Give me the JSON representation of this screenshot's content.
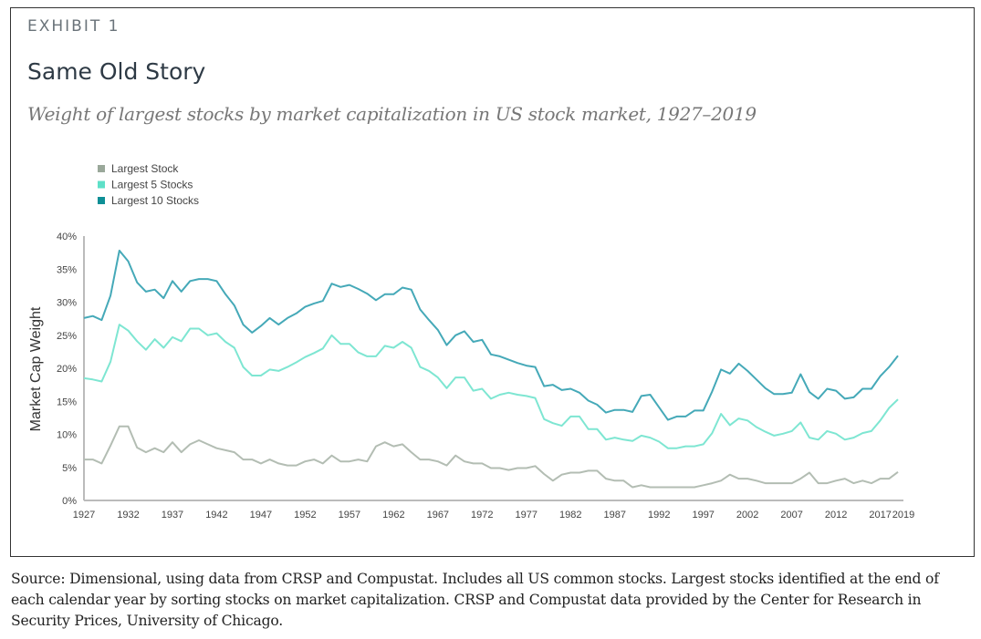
{
  "header": {
    "exhibit": "EXHIBIT 1",
    "title": "Same Old Story",
    "subtitle": "Weight of largest stocks by market capitalization in US stock market, 1927–2019"
  },
  "footer": {
    "source": "Source: Dimensional, using data from CRSP and Compustat. Includes all US common stocks. Largest stocks identified at the end of each calendar year by sorting stocks on market capitalization. CRSP and Compustat data provided by the Center for Research in Security Prices, University of Chicago."
  },
  "chart_data": {
    "type": "line",
    "title": "Same Old Story",
    "xlabel": "",
    "ylabel": "Market Cap Weight",
    "x_start": 1927,
    "x_end": 2019,
    "xlim": [
      1927,
      2019
    ],
    "ylim": [
      0,
      40
    ],
    "x_ticks": [
      "1927",
      "1932",
      "1937",
      "1942",
      "1947",
      "1952",
      "1957",
      "1962",
      "1967",
      "1972",
      "1977",
      "1982",
      "1987",
      "1992",
      "1997",
      "2002",
      "2007",
      "2012",
      "2017",
      "2019"
    ],
    "y_ticks": [
      "0%",
      "5%",
      "10%",
      "15%",
      "20%",
      "25%",
      "30%",
      "35%",
      "40%"
    ],
    "grid": false,
    "legend_position": "top-left",
    "series": [
      {
        "name": "Largest Stock",
        "color": "#b3bdb3",
        "legend_color": "#9aa89a",
        "values": [
          6.2,
          6.2,
          5.6,
          8.3,
          11.2,
          11.2,
          8.0,
          7.3,
          7.9,
          7.3,
          8.8,
          7.3,
          8.5,
          9.1,
          8.5,
          7.9,
          7.6,
          7.3,
          6.2,
          6.2,
          5.6,
          6.2,
          5.6,
          5.3,
          5.3,
          5.9,
          6.2,
          5.6,
          6.8,
          5.9,
          5.9,
          6.2,
          5.9,
          8.2,
          8.8,
          8.2,
          8.5,
          7.3,
          6.2,
          6.2,
          5.9,
          5.3,
          6.8,
          5.9,
          5.6,
          5.6,
          4.9,
          4.9,
          4.6,
          4.9,
          4.9,
          5.2,
          4.0,
          3.0,
          3.9,
          4.2,
          4.2,
          4.5,
          4.5,
          3.3,
          3.0,
          3.0,
          2.0,
          2.3,
          2.0,
          2.0,
          2.0,
          2.0,
          2.0,
          2.0,
          2.3,
          2.6,
          3.0,
          3.9,
          3.3,
          3.3,
          3.0,
          2.6,
          2.6,
          2.6,
          2.6,
          3.3,
          4.2,
          2.6,
          2.6,
          3.0,
          3.3,
          2.6,
          3.0,
          2.6,
          3.3,
          3.3,
          4.3
        ]
      },
      {
        "name": "Largest 5 Stocks",
        "color": "#7ee6d2",
        "legend_color": "#5ee0c8",
        "values": [
          18.5,
          18.3,
          18.0,
          21.0,
          26.6,
          25.7,
          24.1,
          22.8,
          24.4,
          23.1,
          24.7,
          24.1,
          26.0,
          26.0,
          25.0,
          25.3,
          24.0,
          23.1,
          20.2,
          18.9,
          18.9,
          19.8,
          19.6,
          20.2,
          20.9,
          21.7,
          22.3,
          23.0,
          25.0,
          23.7,
          23.7,
          22.4,
          21.8,
          21.8,
          23.4,
          23.1,
          24.0,
          23.1,
          20.2,
          19.6,
          18.6,
          17.0,
          18.6,
          18.6,
          16.6,
          16.9,
          15.4,
          16.0,
          16.3,
          16.0,
          15.8,
          15.5,
          12.3,
          11.7,
          11.3,
          12.7,
          12.7,
          10.8,
          10.8,
          9.2,
          9.5,
          9.2,
          9.0,
          9.8,
          9.5,
          8.9,
          7.9,
          7.9,
          8.2,
          8.2,
          8.5,
          10.2,
          13.1,
          11.4,
          12.4,
          12.1,
          11.1,
          10.4,
          9.8,
          10.1,
          10.5,
          11.8,
          9.5,
          9.2,
          10.5,
          10.1,
          9.2,
          9.5,
          10.2,
          10.5,
          12.1,
          14.0,
          15.3
        ]
      },
      {
        "name": "Largest 10 Stocks",
        "color": "#45a9b8",
        "legend_color": "#0e8f96",
        "values": [
          27.6,
          27.9,
          27.3,
          31.0,
          37.8,
          36.2,
          33.0,
          31.6,
          31.9,
          30.6,
          33.2,
          31.6,
          33.2,
          33.5,
          33.5,
          33.2,
          31.2,
          29.5,
          26.6,
          25.4,
          26.4,
          27.6,
          26.6,
          27.6,
          28.3,
          29.3,
          29.8,
          30.2,
          32.8,
          32.3,
          32.6,
          32.0,
          31.3,
          30.3,
          31.2,
          31.2,
          32.2,
          31.9,
          28.9,
          27.3,
          25.8,
          23.5,
          25.0,
          25.6,
          24.0,
          24.3,
          22.1,
          21.8,
          21.3,
          20.8,
          20.4,
          20.2,
          17.3,
          17.5,
          16.7,
          16.9,
          16.3,
          15.1,
          14.5,
          13.3,
          13.7,
          13.7,
          13.4,
          15.8,
          16.0,
          14.1,
          12.2,
          12.7,
          12.7,
          13.6,
          13.6,
          16.5,
          19.8,
          19.2,
          20.7,
          19.6,
          18.3,
          17.0,
          16.1,
          16.1,
          16.3,
          19.1,
          16.4,
          15.4,
          16.9,
          16.6,
          15.4,
          15.6,
          16.9,
          16.9,
          18.8,
          20.2,
          21.9
        ]
      }
    ]
  }
}
